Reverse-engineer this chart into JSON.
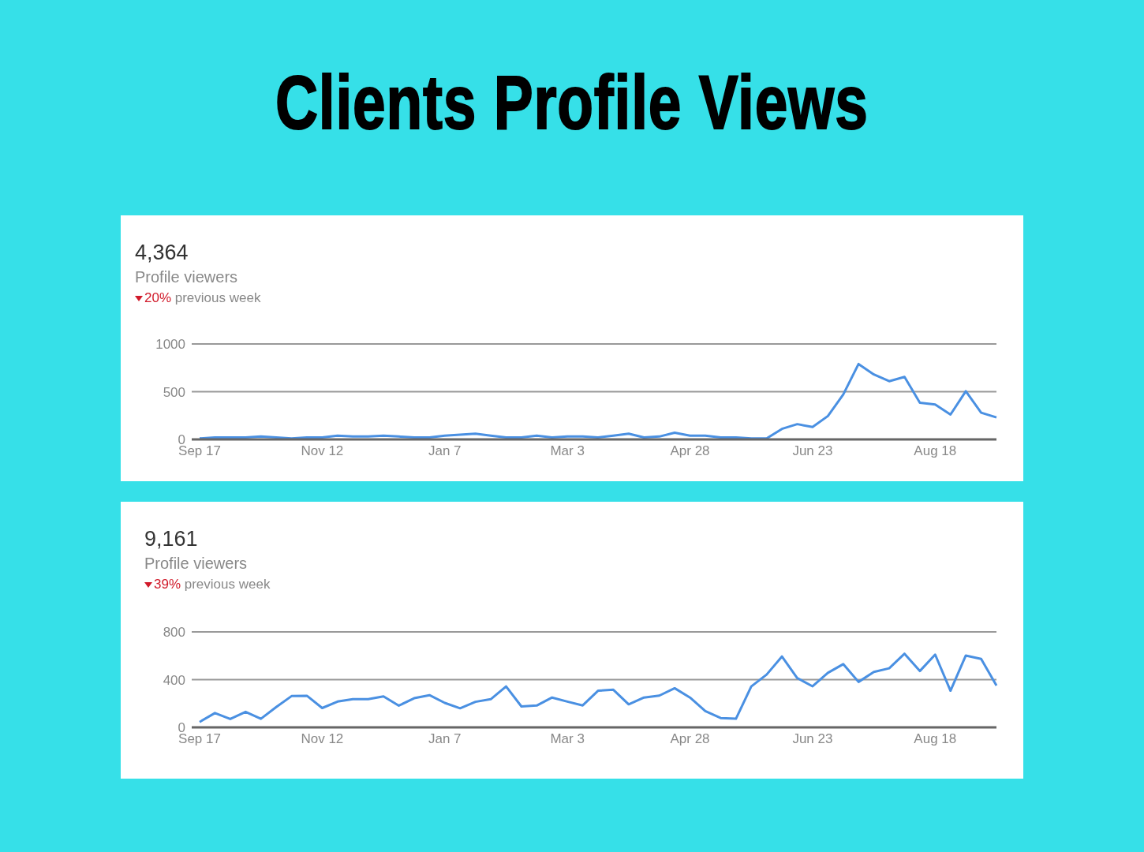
{
  "chart_data": [
    {
      "type": "other",
      "title": "Clients Profile Views"
    },
    {
      "type": "line",
      "title": "4,364",
      "subtitle": "Profile viewers",
      "annotations": [
        "20% previous week"
      ],
      "categories": [
        "Sep 17",
        null,
        null,
        null,
        null,
        null,
        null,
        null,
        "Nov 12",
        null,
        null,
        null,
        null,
        null,
        null,
        null,
        "Jan 7",
        null,
        null,
        null,
        null,
        null,
        null,
        null,
        "Mar 3",
        null,
        null,
        null,
        null,
        null,
        null,
        null,
        "Apr 28",
        null,
        null,
        null,
        null,
        null,
        null,
        null,
        "Jun 23",
        null,
        null,
        null,
        null,
        null,
        null,
        null,
        "Aug 18",
        null,
        null,
        null,
        null
      ],
      "series": [
        {
          "color": "#4a90e2",
          "values": [
            10,
            20,
            20,
            20,
            30,
            20,
            10,
            20,
            20,
            40,
            30,
            30,
            40,
            30,
            20,
            20,
            40,
            50,
            60,
            40,
            20,
            20,
            40,
            20,
            30,
            30,
            20,
            40,
            60,
            20,
            30,
            70,
            40,
            40,
            20,
            20,
            10,
            10,
            110,
            160,
            130,
            245,
            470,
            790,
            680,
            610,
            655,
            385,
            365,
            260,
            505,
            280,
            230
          ]
        }
      ],
      "ylim": [
        0,
        1000
      ],
      "yticks": [
        0,
        500,
        1000
      ],
      "grid": "y",
      "legend": false,
      "marker": "none",
      "line_style": "solid"
    },
    {
      "type": "line",
      "title": "9,161",
      "subtitle": "Profile viewers",
      "annotations": [
        "39% previous week"
      ],
      "categories": [
        "Sep 17",
        null,
        null,
        null,
        null,
        null,
        null,
        null,
        "Nov 12",
        null,
        null,
        null,
        null,
        null,
        null,
        null,
        "Jan 7",
        null,
        null,
        null,
        null,
        null,
        null,
        null,
        "Mar 3",
        null,
        null,
        null,
        null,
        null,
        null,
        null,
        "Apr 28",
        null,
        null,
        null,
        null,
        null,
        null,
        null,
        "Jun 23",
        null,
        null,
        null,
        null,
        null,
        null,
        null,
        "Aug 18",
        null,
        null,
        null,
        null
      ],
      "series": [
        {
          "color": "#4a90e2",
          "values": [
            45,
            120,
            70,
            130,
            72,
            170,
            262,
            265,
            162,
            216,
            236,
            236,
            260,
            182,
            244,
            270,
            205,
            160,
            214,
            236,
            343,
            175,
            183,
            250,
            216,
            184,
            307,
            315,
            193,
            250,
            266,
            328,
            250,
            137,
            78,
            72,
            343,
            442,
            594,
            413,
            344,
            457,
            530,
            381,
            465,
            495,
            617,
            472,
            610,
            307,
            602,
            574,
            350
          ]
        }
      ],
      "ylim": [
        0,
        800
      ],
      "yticks": [
        0,
        400,
        800
      ],
      "grid": "y",
      "legend": false,
      "marker": "none",
      "line_style": "solid"
    }
  ]
}
